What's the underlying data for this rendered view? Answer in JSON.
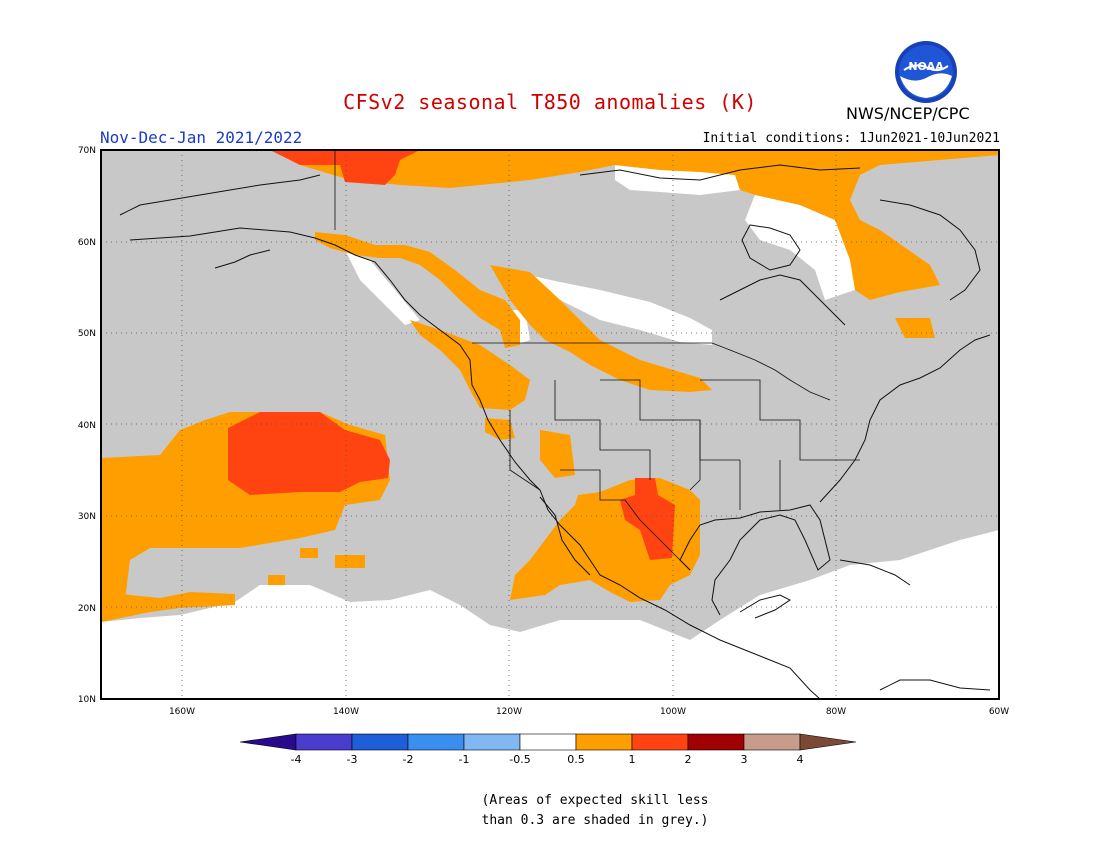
{
  "title": "CFSv2 seasonal T850 anomalies (K)",
  "period": "Nov-Dec-Jan 2021/2022",
  "initial_conditions": "Initial conditions: 1Jun2021-10Jun2021",
  "agency": "NWS/NCEP/CPC",
  "logo_text": "NOAA",
  "note_line1": "(Areas of expected skill less",
  "note_line2": "than 0.3 are shaded in grey.)",
  "map": {
    "lon_range": [
      -171,
      -60
    ],
    "lat_range": [
      10,
      70
    ],
    "lat_ticks": [
      "10N",
      "20N",
      "30N",
      "40N",
      "50N",
      "60N",
      "70N"
    ],
    "lon_ticks": [
      "160W",
      "140W",
      "120W",
      "100W",
      "80W",
      "60W"
    ],
    "grey_color": "#c8c8c8",
    "grid": "dotted"
  },
  "colorbar": {
    "labels": [
      "-4",
      "-3",
      "-2",
      "-1",
      "-0.5",
      "0.5",
      "1",
      "2",
      "3",
      "4"
    ],
    "colors": [
      "#2a0a8c",
      "#4a3ccc",
      "#1e5ed8",
      "#3a8ef0",
      "#82b8f2",
      "#ffffff",
      "#ff9e00",
      "#ff4412",
      "#a00000",
      "#c89c8a",
      "#7a4a36"
    ]
  }
}
